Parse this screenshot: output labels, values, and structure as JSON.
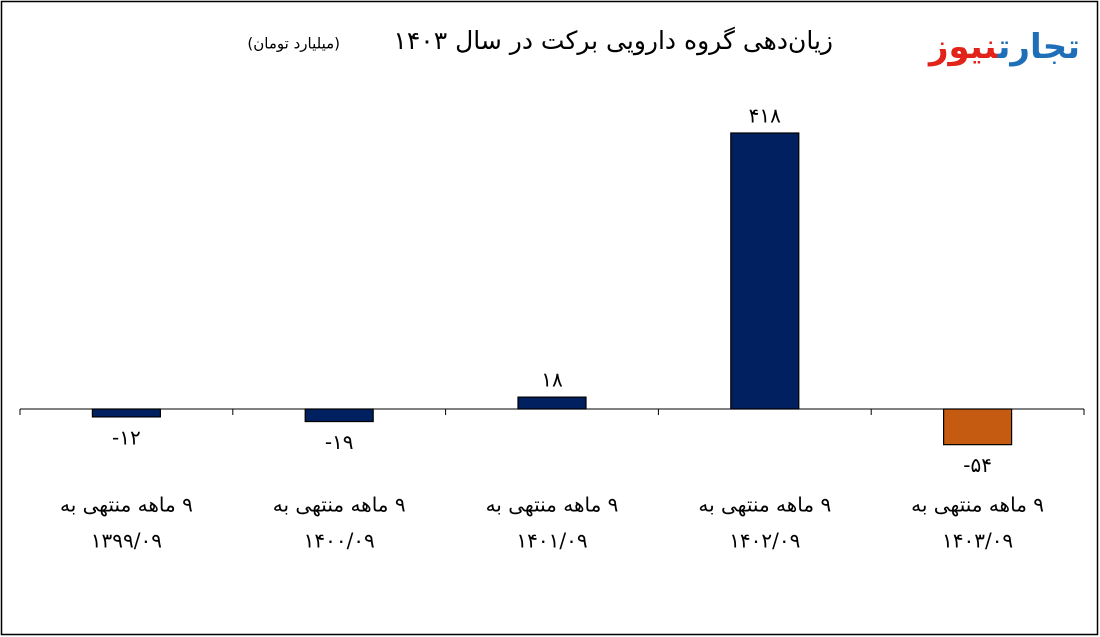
{
  "logo": [
    "تجارت",
    "نیوز"
  ],
  "chart_data": {
    "type": "bar",
    "title": "زیان‌دهی گروه دارویی برکت در سال ۱۴۰۳",
    "subtitle": "(میلیارد تومان)",
    "categories": [
      [
        "۹ ماهه منتهی به",
        "۱۳۹۹/۰۹"
      ],
      [
        "۹ ماهه منتهی به",
        "۱۴۰۰/۰۹"
      ],
      [
        "۹ ماهه منتهی به",
        "۱۴۰۱/۰۹"
      ],
      [
        "۹ ماهه منتهی به",
        "۱۴۰۲/۰۹"
      ],
      [
        "۹ ماهه منتهی به",
        "۱۴۰۳/۰۹"
      ]
    ],
    "values": [
      -12,
      -19,
      18,
      418,
      -54
    ],
    "value_labels": [
      "-۱۲",
      "-۱۹",
      "۱۸",
      "۴۱۸",
      "-۵۴"
    ],
    "colors": [
      "#002060",
      "#002060",
      "#002060",
      "#002060",
      "#c55a11"
    ]
  }
}
